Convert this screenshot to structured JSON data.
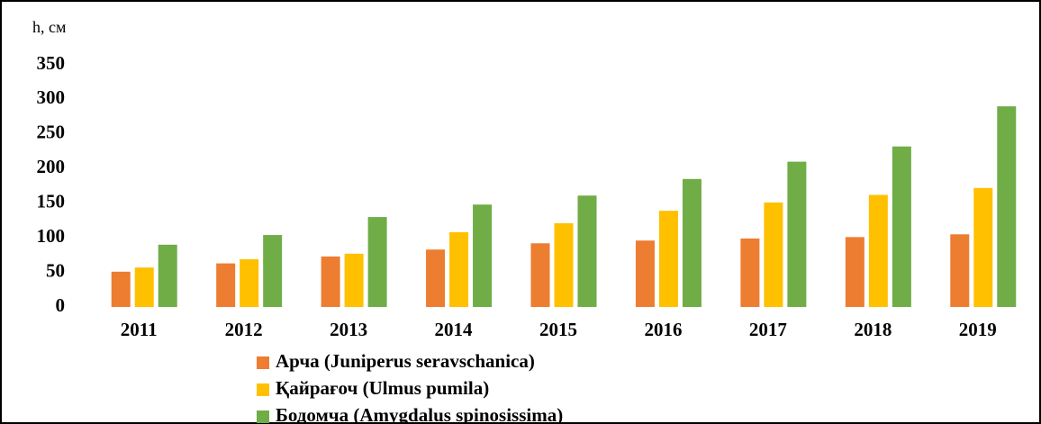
{
  "chart_data": {
    "type": "bar",
    "ylabel": "h, см",
    "categories": [
      "2011",
      "2012",
      "2013",
      "2014",
      "2015",
      "2016",
      "2017",
      "2018",
      "2019"
    ],
    "series": [
      {
        "name": "Арча (Juniperus seravschanica)",
        "color": "#ed7d31",
        "values": [
          51,
          63,
          73,
          83,
          92,
          96,
          99,
          101,
          105
        ]
      },
      {
        "name": "Қайрағоч (Ulmus pumila)",
        "color": "#ffc000",
        "values": [
          57,
          69,
          77,
          108,
          121,
          139,
          151,
          162,
          172
        ]
      },
      {
        "name": "Бодомча (Amygdalus spinosissima)",
        "color": "#70ad47",
        "values": [
          90,
          104,
          130,
          148,
          161,
          185,
          210,
          232,
          290
        ]
      }
    ],
    "ylim": [
      0,
      350
    ],
    "yticks": [
      0,
      50,
      100,
      150,
      200,
      250,
      300,
      350
    ],
    "grid": false,
    "legend": "bottom"
  }
}
